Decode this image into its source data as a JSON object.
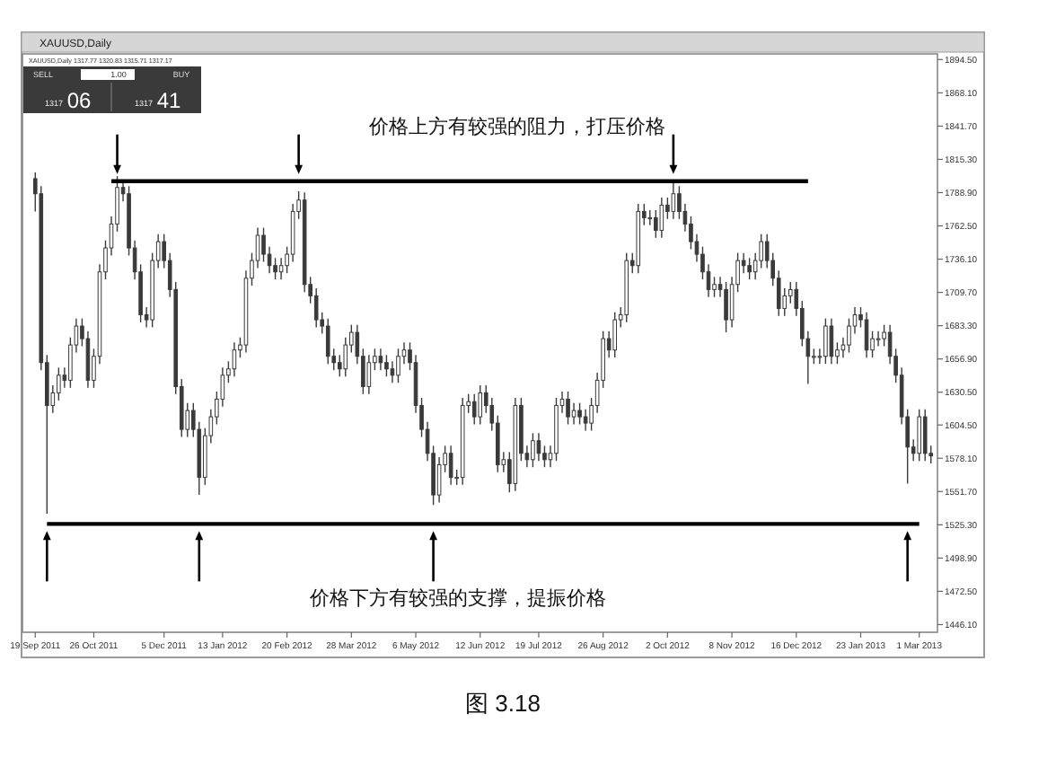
{
  "chart_data": {
    "type": "candlestick",
    "title": "XAUUSD,Daily",
    "color": "#3a3a3a",
    "categories": [
      "19 Sep 2011",
      null,
      null,
      null,
      null,
      null,
      null,
      null,
      null,
      null,
      "26 Oct 2011",
      null,
      null,
      null,
      null,
      null,
      null,
      null,
      null,
      null,
      null,
      null,
      "5 Dec 2011",
      null,
      null,
      null,
      null,
      null,
      null,
      null,
      null,
      null,
      "13 Jan 2012",
      null,
      null,
      null,
      null,
      null,
      null,
      null,
      null,
      null,
      null,
      "20 Feb 2012",
      null,
      null,
      null,
      null,
      null,
      null,
      null,
      null,
      null,
      null,
      "28 Mar 2012",
      null,
      null,
      null,
      null,
      null,
      null,
      null,
      null,
      null,
      null,
      "6 May 2012",
      null,
      null,
      null,
      null,
      null,
      null,
      null,
      null,
      null,
      null,
      "12 Jun 2012",
      null,
      null,
      null,
      null,
      null,
      null,
      null,
      null,
      null,
      "19 Jul 2012",
      null,
      null,
      null,
      null,
      null,
      null,
      null,
      null,
      null,
      null,
      "26 Aug 2012",
      null,
      null,
      null,
      null,
      null,
      null,
      null,
      null,
      null,
      null,
      "2 Oct 2012",
      null,
      null,
      null,
      null,
      null,
      null,
      null,
      null,
      null,
      null,
      "8 Nov 2012",
      null,
      null,
      null,
      null,
      null,
      null,
      null,
      null,
      null,
      null,
      "16 Dec 2012",
      null,
      null,
      null,
      null,
      null,
      null,
      null,
      null,
      null,
      null,
      "23 Jan 2013",
      null,
      null,
      null,
      null,
      null,
      null,
      null,
      null,
      null,
      "1 Mar 2013",
      null,
      null
    ],
    "ohlc": [
      [
        1800,
        1805,
        1774,
        1788
      ],
      [
        1788,
        1794,
        1648,
        1654
      ],
      [
        1654,
        1660,
        1534,
        1620
      ],
      [
        1620,
        1636,
        1614,
        1630
      ],
      [
        1630,
        1650,
        1624,
        1644
      ],
      [
        1644,
        1650,
        1634,
        1640
      ],
      [
        1640,
        1674,
        1634,
        1668
      ],
      [
        1668,
        1689,
        1662,
        1683
      ],
      [
        1683,
        1689,
        1667,
        1673
      ],
      [
        1673,
        1679,
        1634,
        1640
      ],
      [
        1640,
        1665,
        1634,
        1659
      ],
      [
        1659,
        1732,
        1653,
        1726
      ],
      [
        1726,
        1751,
        1720,
        1745
      ],
      [
        1745,
        1770,
        1739,
        1764
      ],
      [
        1764,
        1802,
        1758,
        1793
      ],
      [
        1793,
        1799,
        1782,
        1788
      ],
      [
        1788,
        1794,
        1739,
        1745
      ],
      [
        1745,
        1751,
        1720,
        1726
      ],
      [
        1726,
        1732,
        1686,
        1692
      ],
      [
        1692,
        1698,
        1682,
        1688
      ],
      [
        1688,
        1741,
        1682,
        1735
      ],
      [
        1735,
        1756,
        1729,
        1750
      ],
      [
        1750,
        1756,
        1729,
        1735
      ],
      [
        1735,
        1741,
        1706,
        1712
      ],
      [
        1712,
        1718,
        1629,
        1635
      ],
      [
        1635,
        1641,
        1595,
        1601
      ],
      [
        1601,
        1622,
        1595,
        1616
      ],
      [
        1616,
        1622,
        1595,
        1601
      ],
      [
        1601,
        1607,
        1549,
        1563
      ],
      [
        1563,
        1602,
        1557,
        1596
      ],
      [
        1596,
        1617,
        1590,
        1611
      ],
      [
        1611,
        1631,
        1605,
        1625
      ],
      [
        1625,
        1650,
        1619,
        1644
      ],
      [
        1644,
        1655,
        1638,
        1649
      ],
      [
        1649,
        1670,
        1643,
        1664
      ],
      [
        1664,
        1674,
        1658,
        1668
      ],
      [
        1668,
        1727,
        1662,
        1721
      ],
      [
        1721,
        1741,
        1715,
        1735
      ],
      [
        1735,
        1761,
        1729,
        1755
      ],
      [
        1755,
        1761,
        1734,
        1740
      ],
      [
        1740,
        1746,
        1725,
        1731
      ],
      [
        1731,
        1737,
        1720,
        1726
      ],
      [
        1726,
        1737,
        1720,
        1731
      ],
      [
        1731,
        1746,
        1725,
        1740
      ],
      [
        1740,
        1780,
        1734,
        1774
      ],
      [
        1774,
        1790,
        1768,
        1783
      ],
      [
        1783,
        1789,
        1710,
        1716
      ],
      [
        1716,
        1722,
        1701,
        1707
      ],
      [
        1707,
        1713,
        1682,
        1688
      ],
      [
        1688,
        1694,
        1677,
        1683
      ],
      [
        1683,
        1689,
        1653,
        1659
      ],
      [
        1659,
        1665,
        1648,
        1654
      ],
      [
        1654,
        1660,
        1643,
        1649
      ],
      [
        1649,
        1674,
        1643,
        1668
      ],
      [
        1668,
        1684,
        1662,
        1678
      ],
      [
        1678,
        1684,
        1653,
        1659
      ],
      [
        1659,
        1665,
        1629,
        1635
      ],
      [
        1635,
        1660,
        1629,
        1654
      ],
      [
        1654,
        1665,
        1648,
        1659
      ],
      [
        1659,
        1665,
        1648,
        1654
      ],
      [
        1654,
        1660,
        1643,
        1649
      ],
      [
        1649,
        1655,
        1638,
        1644
      ],
      [
        1644,
        1665,
        1638,
        1659
      ],
      [
        1659,
        1670,
        1653,
        1664
      ],
      [
        1664,
        1670,
        1648,
        1654
      ],
      [
        1654,
        1660,
        1614,
        1620
      ],
      [
        1620,
        1626,
        1595,
        1601
      ],
      [
        1601,
        1607,
        1576,
        1582
      ],
      [
        1582,
        1588,
        1541,
        1549
      ],
      [
        1549,
        1579,
        1543,
        1573
      ],
      [
        1573,
        1588,
        1567,
        1582
      ],
      [
        1582,
        1588,
        1557,
        1563
      ],
      [
        1563,
        1569,
        1557,
        1563
      ],
      [
        1563,
        1626,
        1557,
        1620
      ],
      [
        1620,
        1629,
        1614,
        1623
      ],
      [
        1623,
        1629,
        1605,
        1611
      ],
      [
        1611,
        1636,
        1605,
        1630
      ],
      [
        1630,
        1636,
        1614,
        1620
      ],
      [
        1620,
        1626,
        1600,
        1606
      ],
      [
        1606,
        1612,
        1567,
        1573
      ],
      [
        1573,
        1583,
        1567,
        1577
      ],
      [
        1577,
        1583,
        1551,
        1558
      ],
      [
        1558,
        1626,
        1552,
        1620
      ],
      [
        1620,
        1626,
        1576,
        1582
      ],
      [
        1582,
        1588,
        1571,
        1577
      ],
      [
        1577,
        1598,
        1571,
        1592
      ],
      [
        1592,
        1598,
        1576,
        1582
      ],
      [
        1582,
        1588,
        1571,
        1577
      ],
      [
        1577,
        1588,
        1571,
        1582
      ],
      [
        1582,
        1626,
        1576,
        1620
      ],
      [
        1620,
        1631,
        1614,
        1625
      ],
      [
        1625,
        1631,
        1605,
        1611
      ],
      [
        1611,
        1622,
        1605,
        1616
      ],
      [
        1616,
        1622,
        1605,
        1611
      ],
      [
        1611,
        1617,
        1600,
        1606
      ],
      [
        1606,
        1626,
        1600,
        1620
      ],
      [
        1620,
        1646,
        1614,
        1640
      ],
      [
        1640,
        1679,
        1634,
        1673
      ],
      [
        1673,
        1679,
        1658,
        1664
      ],
      [
        1664,
        1694,
        1658,
        1688
      ],
      [
        1688,
        1698,
        1682,
        1692
      ],
      [
        1692,
        1741,
        1686,
        1735
      ],
      [
        1735,
        1741,
        1725,
        1731
      ],
      [
        1731,
        1780,
        1725,
        1774
      ],
      [
        1774,
        1780,
        1763,
        1769
      ],
      [
        1769,
        1775,
        1763,
        1769
      ],
      [
        1769,
        1775,
        1753,
        1759
      ],
      [
        1759,
        1785,
        1753,
        1779
      ],
      [
        1779,
        1785,
        1768,
        1774
      ],
      [
        1774,
        1798,
        1768,
        1788
      ],
      [
        1788,
        1794,
        1768,
        1774
      ],
      [
        1774,
        1780,
        1758,
        1764
      ],
      [
        1764,
        1770,
        1744,
        1750
      ],
      [
        1750,
        1756,
        1734,
        1740
      ],
      [
        1740,
        1746,
        1720,
        1726
      ],
      [
        1726,
        1732,
        1706,
        1712
      ],
      [
        1712,
        1722,
        1706,
        1716
      ],
      [
        1716,
        1722,
        1706,
        1712
      ],
      [
        1712,
        1718,
        1678,
        1688
      ],
      [
        1688,
        1722,
        1682,
        1716
      ],
      [
        1716,
        1741,
        1710,
        1735
      ],
      [
        1735,
        1741,
        1725,
        1731
      ],
      [
        1731,
        1737,
        1720,
        1726
      ],
      [
        1726,
        1741,
        1720,
        1735
      ],
      [
        1735,
        1756,
        1729,
        1750
      ],
      [
        1750,
        1756,
        1729,
        1735
      ],
      [
        1735,
        1741,
        1715,
        1721
      ],
      [
        1721,
        1727,
        1691,
        1697
      ],
      [
        1697,
        1713,
        1691,
        1707
      ],
      [
        1707,
        1718,
        1701,
        1712
      ],
      [
        1712,
        1718,
        1691,
        1697
      ],
      [
        1697,
        1703,
        1667,
        1673
      ],
      [
        1673,
        1679,
        1637,
        1659
      ],
      [
        1659,
        1665,
        1653,
        1659
      ],
      [
        1659,
        1665,
        1653,
        1659
      ],
      [
        1659,
        1689,
        1653,
        1683
      ],
      [
        1683,
        1689,
        1653,
        1659
      ],
      [
        1659,
        1670,
        1653,
        1664
      ],
      [
        1664,
        1674,
        1658,
        1668
      ],
      [
        1668,
        1689,
        1662,
        1683
      ],
      [
        1683,
        1698,
        1677,
        1692
      ],
      [
        1692,
        1698,
        1682,
        1688
      ],
      [
        1688,
        1694,
        1658,
        1664
      ],
      [
        1664,
        1679,
        1658,
        1673
      ],
      [
        1673,
        1679,
        1667,
        1673
      ],
      [
        1673,
        1684,
        1667,
        1678
      ],
      [
        1678,
        1684,
        1653,
        1659
      ],
      [
        1659,
        1665,
        1638,
        1644
      ],
      [
        1644,
        1650,
        1605,
        1611
      ],
      [
        1611,
        1617,
        1558,
        1587
      ],
      [
        1587,
        1593,
        1576,
        1582
      ],
      [
        1582,
        1617,
        1576,
        1611
      ],
      [
        1611,
        1617,
        1576,
        1582
      ],
      [
        1582,
        1588,
        1574,
        1580
      ]
    ],
    "ylim": [
      1440,
      1899
    ],
    "yticks": [
      {
        "value": 1894.5,
        "label": "1894.50"
      },
      {
        "value": 1868.1,
        "label": "1868.10"
      },
      {
        "value": 1841.7,
        "label": "1841.70"
      },
      {
        "value": 1815.3,
        "label": "1815.30"
      },
      {
        "value": 1788.9,
        "label": "1788.90"
      },
      {
        "value": 1762.5,
        "label": "1762.50"
      },
      {
        "value": 1736.1,
        "label": "1736.10"
      },
      {
        "value": 1709.7,
        "label": "1709.70"
      },
      {
        "value": 1683.3,
        "label": "1683.30"
      },
      {
        "value": 1656.9,
        "label": "1656.90"
      },
      {
        "value": 1630.5,
        "label": "1630.50"
      },
      {
        "value": 1604.5,
        "label": "1604.50"
      },
      {
        "value": 1578.1,
        "label": "1578.10"
      },
      {
        "value": 1551.7,
        "label": "1551.70"
      },
      {
        "value": 1525.3,
        "label": "1525.30"
      },
      {
        "value": 1498.9,
        "label": "1498.90"
      },
      {
        "value": 1472.5,
        "label": "1472.50"
      },
      {
        "value": 1446.1,
        "label": "1446.10"
      }
    ],
    "ref_lines": [
      {
        "axis": "y",
        "value": 1798,
        "label": "价格上方有较强的阻力，打压价格",
        "color": "#000000"
      },
      {
        "axis": "y",
        "value": 1526,
        "label": "价格下方有较强的支撑，提振价格",
        "color": "#000000"
      }
    ],
    "annotations": [
      "XAUUSD,Daily 1317.77 1320.83 1315.71 1317.17",
      "SELL",
      "1.00",
      "BUY",
      "1317",
      "06",
      "1317",
      "41",
      "图 3.18"
    ]
  }
}
